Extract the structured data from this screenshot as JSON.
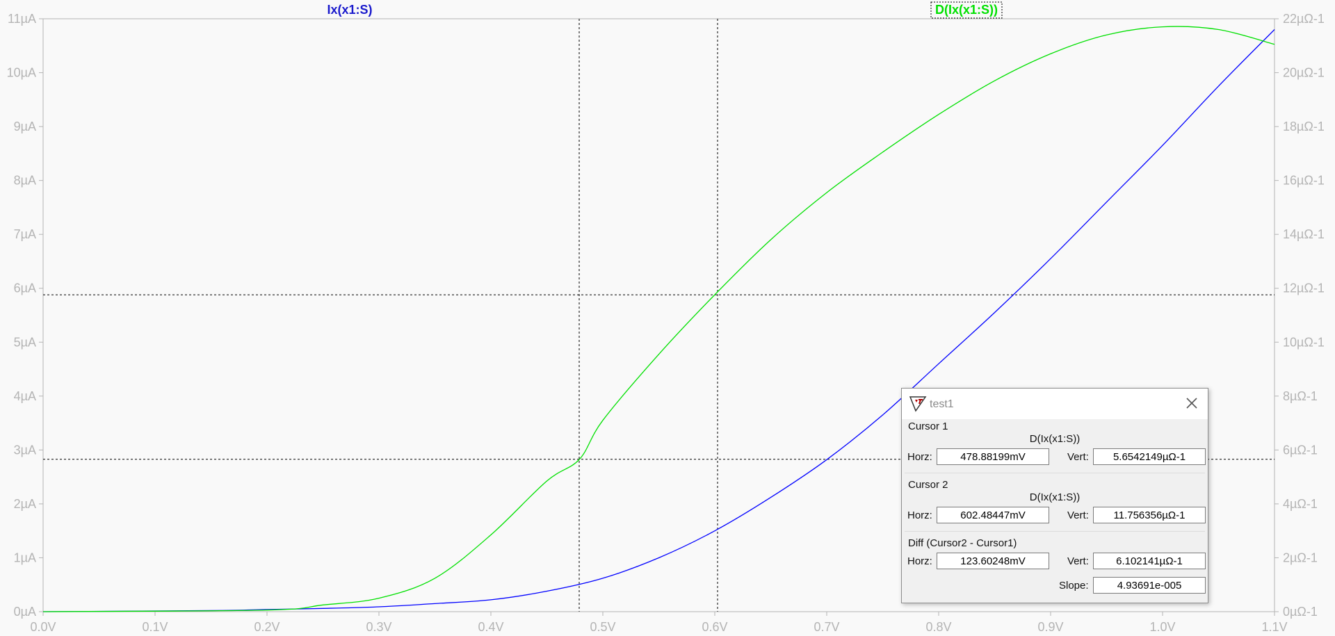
{
  "chart_data": {
    "type": "line",
    "x_axis": {
      "range": [
        0,
        1.1
      ],
      "ticks": [
        "0.0V",
        "0.1V",
        "0.2V",
        "0.3V",
        "0.4V",
        "0.5V",
        "0.6V",
        "0.7V",
        "0.8V",
        "0.9V",
        "1.0V",
        "1.1V"
      ]
    },
    "y_left": {
      "range": [
        0,
        11
      ],
      "ticks": [
        "0µA",
        "1µA",
        "2µA",
        "3µA",
        "4µA",
        "5µA",
        "6µA",
        "7µA",
        "8µA",
        "9µA",
        "10µA",
        "11µA"
      ]
    },
    "y_right": {
      "range": [
        0,
        22
      ],
      "ticks": [
        "0µΩ-1",
        "2µΩ-1",
        "4µΩ-1",
        "6µΩ-1",
        "8µΩ-1",
        "10µΩ-1",
        "12µΩ-1",
        "14µΩ-1",
        "16µΩ-1",
        "18µΩ-1",
        "20µΩ-1",
        "22µΩ-1"
      ]
    },
    "series": [
      {
        "name": "Ix(x1:S)",
        "axis": "left",
        "color": "#0000ff",
        "x": [
          0.0,
          0.15,
          0.2,
          0.25,
          0.3,
          0.35,
          0.4,
          0.45,
          0.5,
          0.55,
          0.6,
          0.65,
          0.7,
          0.75,
          0.8,
          0.85,
          0.9,
          0.95,
          1.0,
          1.05,
          1.1
        ],
        "y": [
          0.0,
          0.02,
          0.04,
          0.06,
          0.09,
          0.15,
          0.22,
          0.38,
          0.62,
          1.0,
          1.5,
          2.12,
          2.82,
          3.65,
          4.6,
          5.55,
          6.55,
          7.6,
          8.65,
          9.75,
          10.8
        ]
      },
      {
        "name": "D(Ix(x1:S))",
        "axis": "right",
        "color": "#00e000",
        "x": [
          0.0,
          0.2,
          0.25,
          0.3,
          0.35,
          0.4,
          0.45,
          0.479,
          0.5,
          0.55,
          0.6,
          0.65,
          0.7,
          0.75,
          0.8,
          0.85,
          0.9,
          0.95,
          1.0,
          1.05,
          1.1
        ],
        "y": [
          0.0,
          0.06,
          0.25,
          0.5,
          1.24,
          2.85,
          4.85,
          5.65,
          7.1,
          9.55,
          11.76,
          13.8,
          15.55,
          17.05,
          18.45,
          19.7,
          20.7,
          21.4,
          21.7,
          21.6,
          21.05
        ]
      }
    ],
    "cursors": {
      "vertical_x": [
        0.47888199,
        0.60248447
      ],
      "horizontal_y_right": [
        5.6542149,
        11.756356
      ]
    },
    "grid": false
  },
  "dialog": {
    "title": "test1",
    "cursor1": {
      "heading": "Cursor 1",
      "trace": "D(Ix(x1:S))",
      "horz_label": "Horz:",
      "horz": "478.88199mV",
      "vert_label": "Vert:",
      "vert": "5.6542149µΩ-1"
    },
    "cursor2": {
      "heading": "Cursor 2",
      "trace": "D(Ix(x1:S))",
      "horz_label": "Horz:",
      "horz": "602.48447mV",
      "vert_label": "Vert:",
      "vert": "11.756356µΩ-1"
    },
    "diff": {
      "heading": "Diff (Cursor2 - Cursor1)",
      "horz_label": "Horz:",
      "horz": "123.60248mV",
      "vert_label": "Vert:",
      "vert": "6.102141µΩ-1",
      "slope_label": "Slope:",
      "slope": "4.93691e-005"
    }
  },
  "colors": {
    "background": "#f9f9f9",
    "axis_text": "#b4b4b4",
    "cursor_line": "#000000"
  },
  "icons": {
    "app": "ltspice-logo-icon",
    "close": "close-icon"
  }
}
